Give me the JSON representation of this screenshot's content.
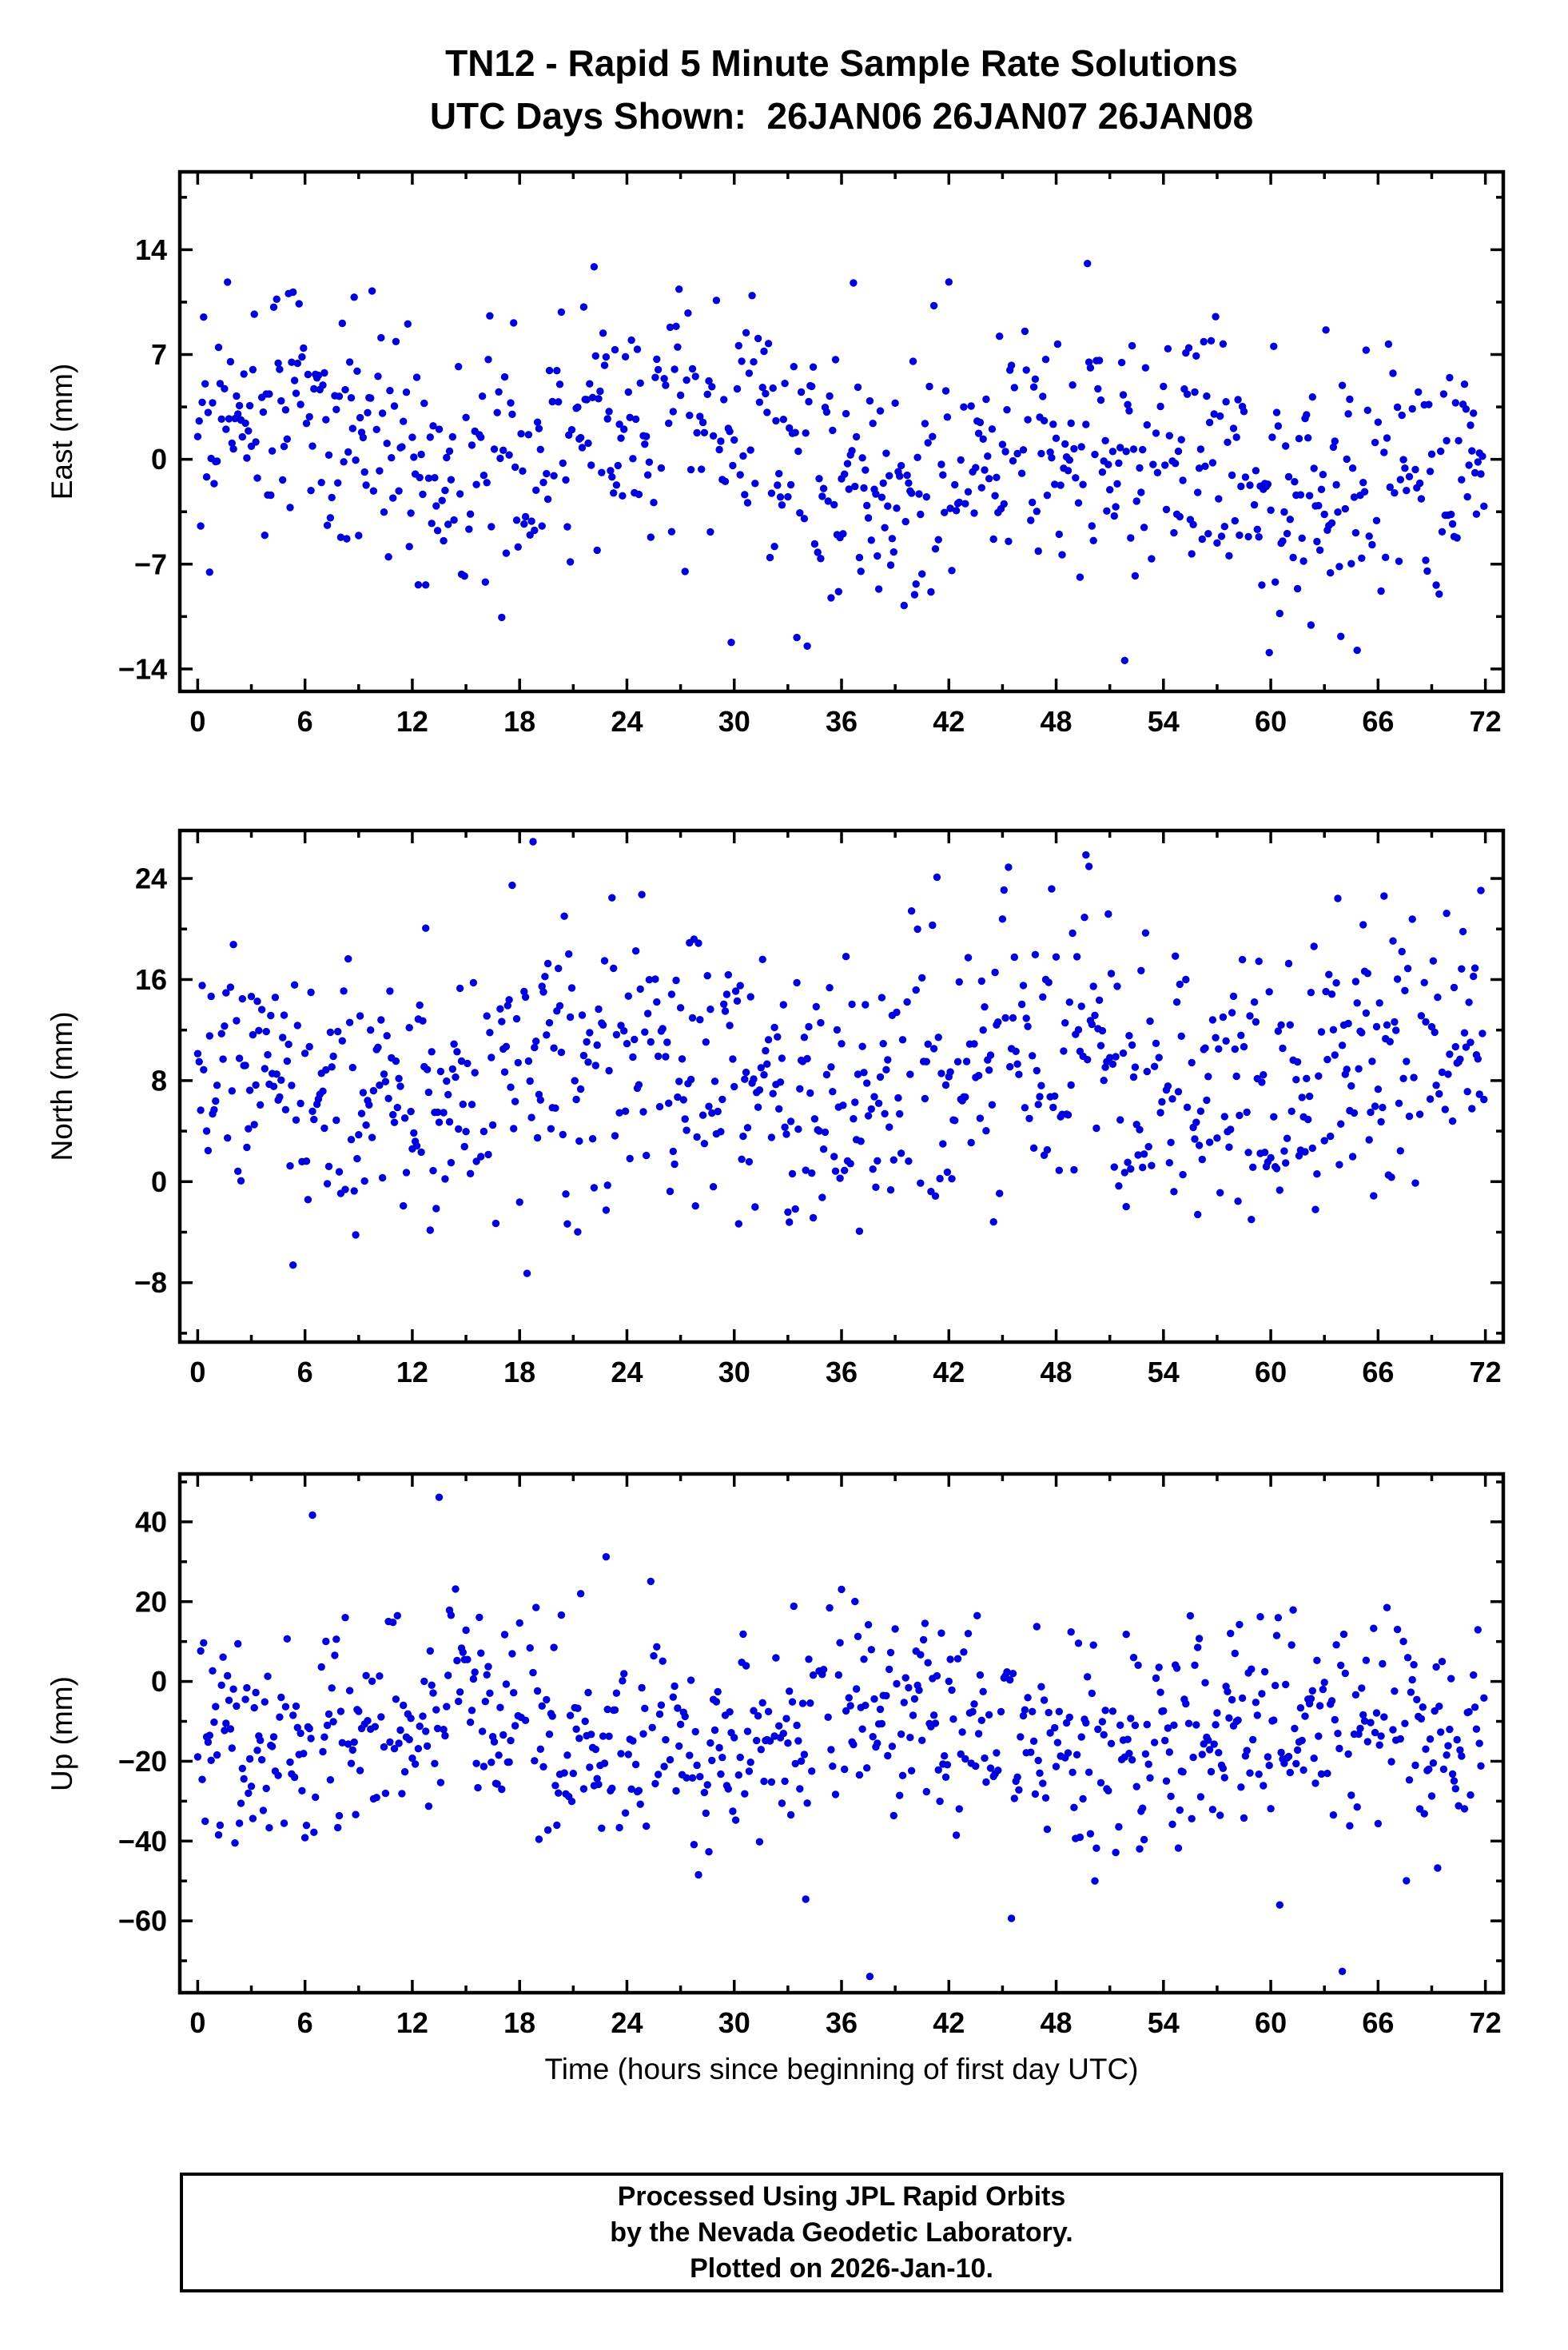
{
  "title": {
    "line1": "TN12 - Rapid 5 Minute Sample Rate Solutions",
    "line2": "UTC Days Shown:  26JAN06 26JAN07 26JAN08"
  },
  "xlabel": "Time (hours since beginning of first day UTC)",
  "footer": {
    "line1": "Processed Using JPL Rapid Orbits",
    "line2": "by the Nevada Geodetic Laboratory.",
    "line3": "Plotted on 2026-Jan-10."
  },
  "marker_color": "#0000DC",
  "chart_data": [
    {
      "type": "scatter",
      "series_name": "East",
      "ylabel": "East (mm)",
      "ylim": [
        -15.5,
        19.2
      ],
      "y_ticks": [
        14,
        7,
        0,
        -7,
        -14
      ],
      "y_minor_step": 3.5,
      "x_ticks": [
        0,
        6,
        12,
        18,
        24,
        30,
        36,
        42,
        48,
        54,
        60,
        66,
        72
      ],
      "x_minor_step": 3,
      "xlim": [
        -1,
        73
      ],
      "sample_interval_hours": 0.0833333,
      "n_slots": 864,
      "keep_prob": 0.9,
      "seed": 42001,
      "mean": 2.2,
      "trend": -3.5,
      "sin_amp": 1.8,
      "sin_period": 24,
      "sin_phase": 0.8,
      "std": 4.3,
      "outlier_prob": 0.02,
      "outlier_scale": 2.8
    },
    {
      "type": "scatter",
      "series_name": "North",
      "ylabel": "North (mm)",
      "ylim": [
        -12.7,
        27.8
      ],
      "y_ticks": [
        24,
        16,
        8,
        0,
        -8
      ],
      "y_minor_step": 4,
      "x_ticks": [
        0,
        6,
        12,
        18,
        24,
        30,
        36,
        42,
        48,
        54,
        60,
        66,
        72
      ],
      "x_minor_step": 3,
      "xlim": [
        -1,
        73
      ],
      "sample_interval_hours": 0.0833333,
      "n_slots": 864,
      "keep_prob": 0.9,
      "seed": 7321,
      "mean": 8.5,
      "trend": 1.0,
      "sin_amp": 2.2,
      "sin_period": 24,
      "sin_phase": 2.1,
      "std": 5.3,
      "outlier_prob": 0.02,
      "outlier_scale": 2.8
    },
    {
      "type": "scatter",
      "series_name": "Up",
      "ylabel": "Up (mm)",
      "ylim": [
        -78,
        52
      ],
      "y_ticks": [
        40,
        20,
        0,
        -20,
        -40,
        -60
      ],
      "y_minor_step": 10,
      "x_ticks": [
        0,
        6,
        12,
        18,
        24,
        30,
        36,
        42,
        48,
        54,
        60,
        66,
        72
      ],
      "x_minor_step": 3,
      "xlim": [
        -1,
        73
      ],
      "sample_interval_hours": 0.0833333,
      "n_slots": 864,
      "keep_prob": 0.9,
      "seed": 99017,
      "mean": -12,
      "trend": -2,
      "sin_amp": 5,
      "sin_period": 24,
      "sin_phase": 4.0,
      "std": 13.5,
      "outlier_prob": 0.02,
      "outlier_scale": 2.8
    }
  ]
}
